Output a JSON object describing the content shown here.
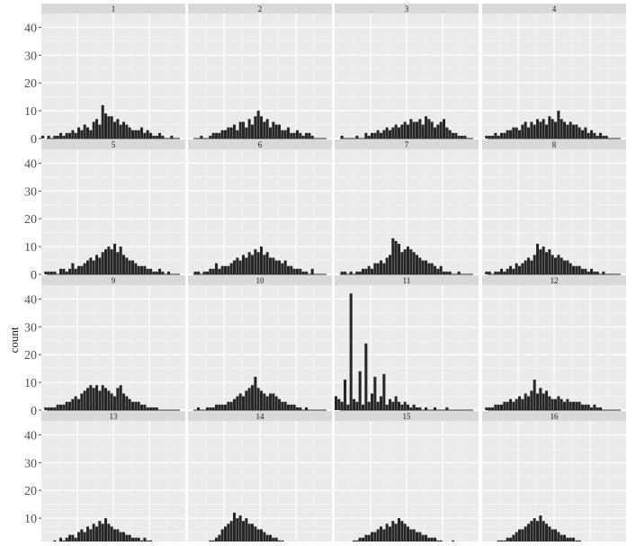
{
  "chart_data": {
    "type": "bar",
    "ylabel": "count",
    "ylim": [
      0,
      45
    ],
    "yticks": [
      0,
      10,
      20,
      30,
      40
    ],
    "grid": true,
    "facets": [
      {
        "label": "1",
        "values": [
          1,
          0,
          1,
          0,
          1,
          1,
          2,
          1,
          2,
          2,
          3,
          2,
          4,
          3,
          5,
          4,
          3,
          6,
          7,
          5,
          12,
          9,
          8,
          8,
          6,
          7,
          5,
          6,
          5,
          4,
          3,
          3,
          3,
          4,
          2,
          3,
          2,
          1,
          1,
          2,
          1,
          0,
          0,
          1,
          0,
          0,
          0,
          0
        ]
      },
      {
        "label": "2",
        "values": [
          0,
          0,
          0,
          0,
          1,
          0,
          0,
          1,
          2,
          2,
          2,
          3,
          3,
          4,
          4,
          5,
          3,
          6,
          6,
          4,
          7,
          5,
          8,
          10,
          8,
          6,
          7,
          4,
          6,
          5,
          5,
          3,
          3,
          4,
          2,
          2,
          3,
          2,
          1,
          2,
          2,
          1,
          0,
          0,
          0,
          0,
          0,
          0
        ]
      },
      {
        "label": "3",
        "values": [
          0,
          0,
          1,
          0,
          0,
          0,
          0,
          1,
          0,
          0,
          2,
          1,
          2,
          2,
          3,
          2,
          3,
          4,
          3,
          4,
          5,
          4,
          5,
          6,
          5,
          7,
          6,
          6,
          7,
          5,
          8,
          7,
          6,
          4,
          5,
          6,
          7,
          4,
          3,
          2,
          2,
          1,
          1,
          1,
          0,
          0,
          0,
          0
        ]
      },
      {
        "label": "4",
        "values": [
          0,
          1,
          1,
          1,
          2,
          1,
          2,
          2,
          3,
          3,
          4,
          4,
          3,
          5,
          6,
          4,
          6,
          5,
          7,
          6,
          7,
          5,
          8,
          7,
          6,
          10,
          7,
          6,
          5,
          6,
          5,
          5,
          4,
          3,
          4,
          2,
          3,
          2,
          1,
          2,
          1,
          1,
          0,
          0,
          0,
          0,
          0,
          0
        ]
      },
      {
        "label": "5",
        "values": [
          0,
          1,
          1,
          1,
          1,
          0,
          2,
          2,
          1,
          2,
          4,
          2,
          3,
          3,
          4,
          5,
          6,
          5,
          7,
          6,
          8,
          9,
          10,
          9,
          11,
          8,
          10,
          7,
          6,
          5,
          5,
          4,
          3,
          3,
          3,
          2,
          2,
          1,
          1,
          2,
          1,
          0,
          1,
          0,
          0,
          0,
          0,
          0
        ]
      },
      {
        "label": "6",
        "values": [
          0,
          0,
          1,
          1,
          0,
          1,
          1,
          2,
          2,
          4,
          2,
          3,
          3,
          3,
          4,
          5,
          6,
          5,
          7,
          6,
          8,
          7,
          9,
          8,
          10,
          7,
          8,
          6,
          6,
          5,
          5,
          4,
          5,
          3,
          3,
          2,
          2,
          2,
          1,
          1,
          0,
          2,
          0,
          0,
          0,
          0,
          0,
          0
        ]
      },
      {
        "label": "7",
        "values": [
          0,
          0,
          1,
          1,
          0,
          1,
          0,
          1,
          1,
          2,
          2,
          3,
          2,
          4,
          4,
          5,
          4,
          6,
          7,
          13,
          12,
          11,
          8,
          9,
          10,
          9,
          8,
          7,
          6,
          5,
          5,
          4,
          4,
          3,
          2,
          3,
          1,
          1,
          1,
          0,
          0,
          1,
          0,
          0,
          0,
          0,
          0,
          0
        ]
      },
      {
        "label": "8",
        "values": [
          0,
          1,
          1,
          0,
          1,
          1,
          2,
          1,
          2,
          3,
          2,
          4,
          3,
          4,
          5,
          6,
          5,
          7,
          11,
          9,
          10,
          8,
          9,
          7,
          6,
          7,
          6,
          5,
          5,
          4,
          3,
          3,
          3,
          2,
          2,
          1,
          2,
          1,
          1,
          0,
          1,
          0,
          0,
          0,
          0,
          0,
          0,
          0
        ]
      },
      {
        "label": "9",
        "values": [
          0,
          1,
          1,
          1,
          1,
          2,
          2,
          2,
          3,
          3,
          4,
          5,
          4,
          6,
          7,
          8,
          9,
          8,
          9,
          7,
          9,
          8,
          7,
          6,
          5,
          8,
          9,
          6,
          5,
          4,
          3,
          3,
          3,
          2,
          2,
          1,
          1,
          1,
          1,
          0,
          0,
          0,
          0,
          0,
          0,
          0,
          0,
          0
        ]
      },
      {
        "label": "10",
        "values": [
          0,
          0,
          0,
          1,
          0,
          0,
          1,
          1,
          1,
          2,
          2,
          2,
          2,
          3,
          3,
          4,
          5,
          6,
          5,
          7,
          8,
          9,
          12,
          8,
          7,
          6,
          5,
          6,
          6,
          5,
          4,
          3,
          3,
          2,
          2,
          2,
          1,
          1,
          0,
          1,
          0,
          0,
          0,
          0,
          0,
          0,
          0,
          0
        ]
      },
      {
        "label": "11",
        "values": [
          5,
          4,
          3,
          11,
          2,
          42,
          4,
          3,
          14,
          2,
          24,
          3,
          6,
          12,
          3,
          5,
          13,
          2,
          4,
          3,
          5,
          3,
          2,
          3,
          2,
          1,
          2,
          1,
          1,
          0,
          1,
          0,
          0,
          1,
          0,
          0,
          0,
          1,
          0,
          0,
          0,
          0,
          0,
          0,
          0,
          0,
          0,
          0
        ]
      },
      {
        "label": "12",
        "values": [
          0,
          1,
          1,
          1,
          2,
          2,
          2,
          3,
          3,
          4,
          3,
          4,
          5,
          4,
          6,
          5,
          7,
          11,
          6,
          8,
          6,
          7,
          5,
          4,
          4,
          5,
          4,
          3,
          4,
          3,
          3,
          3,
          3,
          2,
          2,
          2,
          1,
          2,
          1,
          1,
          0,
          0,
          0,
          0,
          0,
          0,
          0,
          0
        ]
      },
      {
        "label": "13",
        "values": [
          0,
          1,
          1,
          1,
          2,
          1,
          3,
          2,
          3,
          4,
          4,
          3,
          5,
          6,
          5,
          7,
          6,
          8,
          7,
          9,
          8,
          10,
          8,
          7,
          6,
          6,
          5,
          5,
          4,
          4,
          3,
          3,
          3,
          2,
          3,
          2,
          2,
          1,
          1,
          0,
          0,
          0,
          0,
          0,
          0,
          0,
          0,
          0
        ]
      },
      {
        "label": "14",
        "values": [
          0,
          0,
          0,
          1,
          1,
          1,
          1,
          2,
          2,
          3,
          4,
          6,
          7,
          8,
          9,
          12,
          10,
          11,
          9,
          10,
          8,
          8,
          7,
          6,
          6,
          5,
          4,
          4,
          3,
          3,
          2,
          2,
          1,
          1,
          1,
          0,
          1,
          0,
          0,
          0,
          0,
          0,
          0,
          0,
          0,
          0,
          0,
          0
        ]
      },
      {
        "label": "15",
        "values": [
          0,
          0,
          1,
          1,
          1,
          1,
          2,
          2,
          3,
          3,
          4,
          4,
          5,
          5,
          6,
          7,
          6,
          8,
          7,
          9,
          8,
          10,
          9,
          8,
          7,
          6,
          6,
          5,
          5,
          4,
          4,
          3,
          3,
          3,
          2,
          2,
          1,
          1,
          1,
          2,
          1,
          0,
          0,
          0,
          0,
          0,
          0,
          0
        ]
      },
      {
        "label": "16",
        "values": [
          0,
          0,
          1,
          1,
          1,
          2,
          2,
          2,
          3,
          3,
          4,
          5,
          6,
          6,
          7,
          8,
          9,
          10,
          9,
          11,
          9,
          8,
          7,
          6,
          6,
          5,
          4,
          4,
          3,
          3,
          3,
          2,
          2,
          1,
          1,
          1,
          1,
          0,
          0,
          0,
          0,
          0,
          0,
          0,
          0,
          0,
          0,
          0
        ]
      }
    ]
  },
  "colors": {
    "panel_bg": "#ebebeb",
    "grid": "#ffffff",
    "strip_bg": "#d9d9d9",
    "bar": "#262626",
    "tick_text": "#4d4d4d"
  }
}
